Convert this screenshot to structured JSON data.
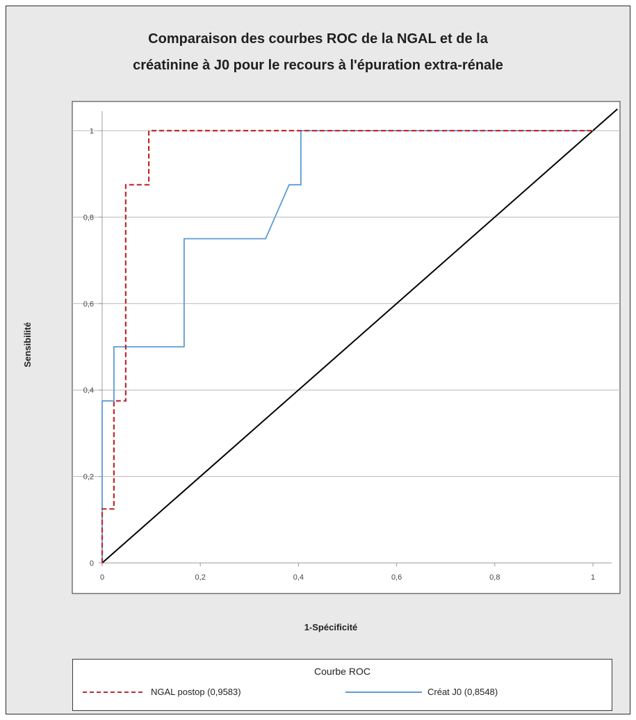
{
  "chart_data": {
    "type": "line",
    "title_lines": [
      "Comparaison des courbes ROC de la NGAL et de la",
      "créatinine à J0 pour le recours à l'épuration extra-rénale"
    ],
    "xlabel": "1-Spécificité",
    "ylabel": "Sensibilité",
    "xlim": [
      0,
      1.05
    ],
    "ylim": [
      0,
      1.05
    ],
    "x_ticks": [
      0,
      0.2,
      0.4,
      0.6,
      0.8,
      1
    ],
    "y_ticks": [
      0,
      0.2,
      0.4,
      0.6,
      0.8,
      1
    ],
    "x_tick_labels": [
      "0",
      "0,2",
      "0,4",
      "0,6",
      "0,8",
      "1"
    ],
    "y_tick_labels": [
      "0",
      "0,2",
      "0,4",
      "0,6",
      "0,8",
      "1"
    ],
    "grid": "horizontal",
    "legend": {
      "title": "Courbe ROC",
      "placement": "bottom"
    },
    "series": [
      {
        "name": "NGAL postop (0,9583)",
        "color": "#c0282d",
        "style": "dashed",
        "points": [
          [
            0,
            0
          ],
          [
            0,
            0.125
          ],
          [
            0.024,
            0.125
          ],
          [
            0.024,
            0.375
          ],
          [
            0.048,
            0.375
          ],
          [
            0.048,
            0.875
          ],
          [
            0.095,
            0.875
          ],
          [
            0.095,
            1
          ],
          [
            1,
            1
          ]
        ]
      },
      {
        "name": "Créat J0 (0,8548)",
        "color": "#5b9bd5",
        "style": "solid",
        "points": [
          [
            0,
            0
          ],
          [
            0,
            0.375
          ],
          [
            0.024,
            0.375
          ],
          [
            0.024,
            0.5
          ],
          [
            0.167,
            0.5
          ],
          [
            0.167,
            0.75
          ],
          [
            0.333,
            0.75
          ],
          [
            0.381,
            0.875
          ],
          [
            0.405,
            0.875
          ],
          [
            0.405,
            1
          ],
          [
            1,
            1
          ]
        ]
      },
      {
        "name": "",
        "color": "#000000",
        "style": "solid",
        "points": [
          [
            0,
            0
          ],
          [
            1.05,
            1.05
          ]
        ]
      }
    ]
  }
}
